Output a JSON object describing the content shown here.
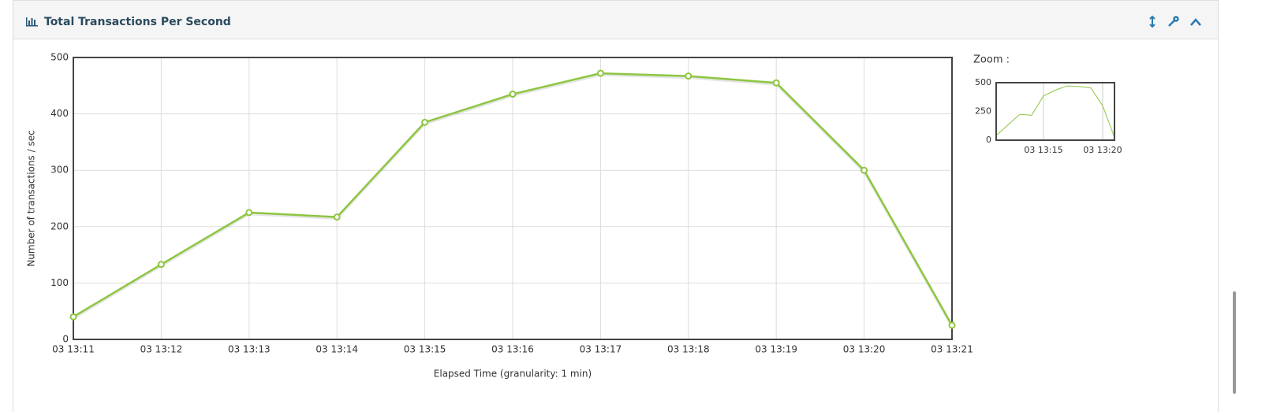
{
  "chart_data": {
    "type": "line",
    "title": "Total Transactions Per Second",
    "x_label": "Elapsed Time (granularity: 1 min)",
    "y_label": "Number of transactions / sec",
    "categories": [
      "03 13:11",
      "03 13:12",
      "03 13:13",
      "03 13:14",
      "03 13:15",
      "03 13:16",
      "03 13:17",
      "03 13:18",
      "03 13:19",
      "03 13:20",
      "03 13:21"
    ],
    "values": [
      40,
      133,
      225,
      217,
      385,
      435,
      472,
      467,
      455,
      300,
      25
    ],
    "color": "#8dc63f",
    "ylim": [
      0,
      500
    ],
    "yticks": [
      0,
      100,
      200,
      300,
      400,
      500
    ],
    "grid": true,
    "zoom": {
      "label": "Zoom :",
      "ylim": [
        0,
        500
      ],
      "yticks": [
        0,
        250,
        500
      ],
      "xticks": [
        "03 13:15",
        "03 13:20"
      ]
    }
  }
}
